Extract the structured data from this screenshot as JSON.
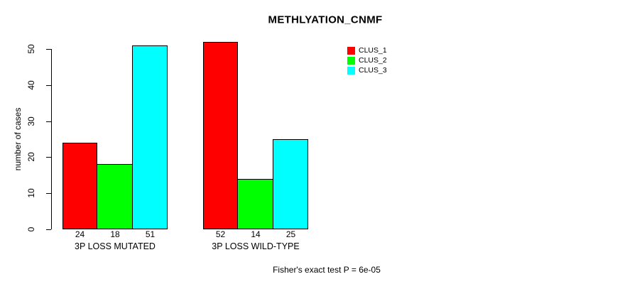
{
  "chart_data": {
    "type": "bar",
    "title": "METHLYATION_CNMF",
    "ylabel": "number of cases",
    "xlabel": "",
    "yticks": [
      0,
      10,
      20,
      30,
      40,
      50
    ],
    "ylim": [
      0,
      52
    ],
    "grid": false,
    "legend_position": "top-right",
    "categories": [
      "3P LOSS MUTATED",
      "3P LOSS WILD-TYPE"
    ],
    "series": [
      {
        "name": "CLUS_1",
        "color": "#ff0000",
        "values": [
          24,
          52
        ]
      },
      {
        "name": "CLUS_2",
        "color": "#00ff00",
        "values": [
          18,
          14
        ]
      },
      {
        "name": "CLUS_3",
        "color": "#00ffff",
        "values": [
          51,
          25
        ]
      }
    ],
    "bar_value_labels": [
      [
        "24",
        "18",
        "51"
      ],
      [
        "52",
        "14",
        "25"
      ]
    ],
    "annotation": "Fisher's exact test P = 6e-05"
  },
  "colors": {
    "background": "#ffffff",
    "bar_border": "#000000",
    "text": "#000000",
    "clus_1": "#ff0000",
    "clus_2": "#00ff00",
    "clus_3": "#00ffff"
  }
}
